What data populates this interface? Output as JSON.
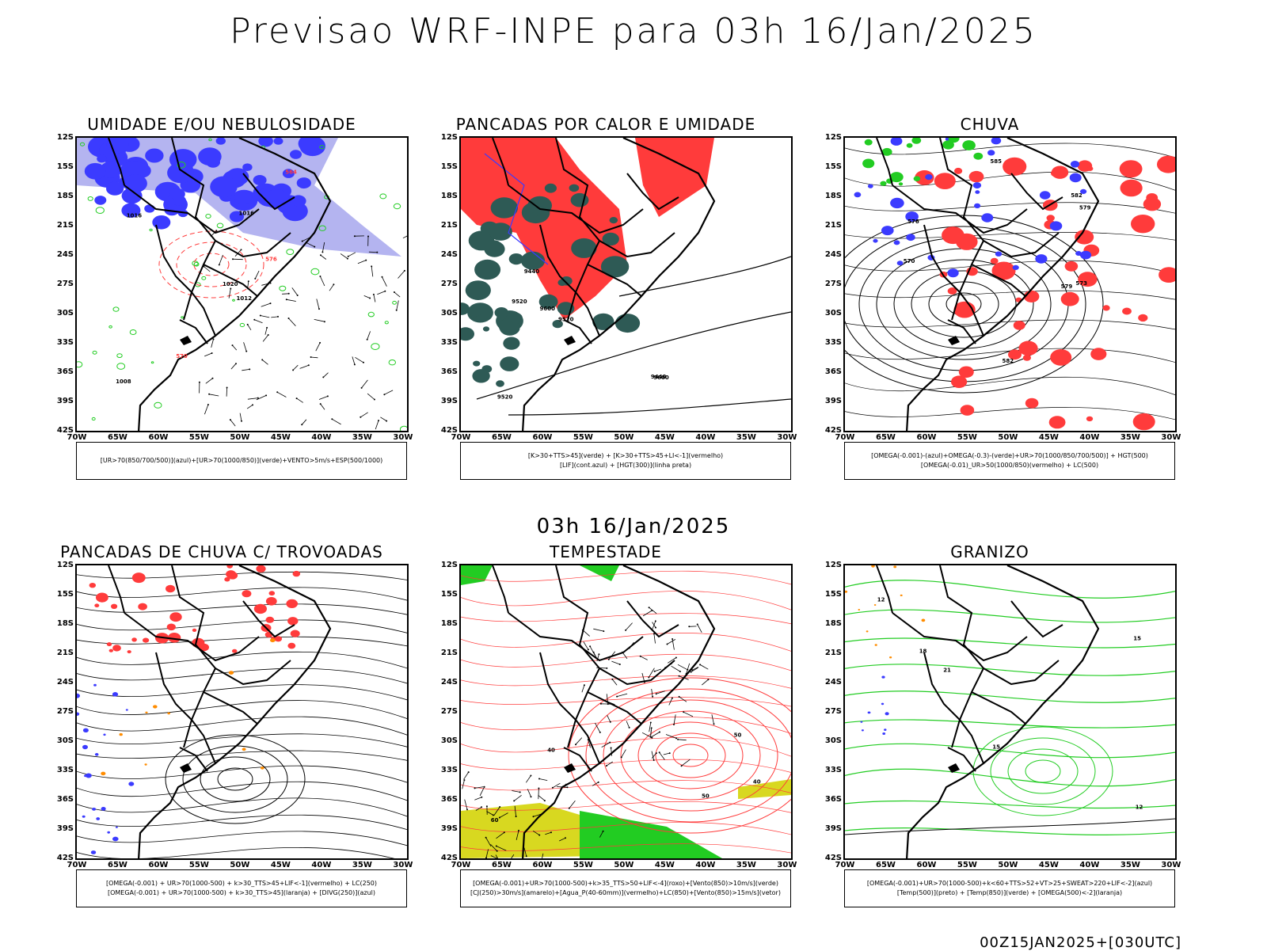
{
  "header": {
    "title": "Previsao WRF-INPE  para 03h 16/Jan/2025"
  },
  "mid_title": "03h 16/Jan/2025",
  "footer": "00Z15JAN2025+[030UTC]",
  "lat_labels": [
    "12S",
    "15S",
    "18S",
    "21S",
    "24S",
    "27S",
    "30S",
    "33S",
    "36S",
    "39S",
    "42S"
  ],
  "lon_labels": [
    "70W",
    "65W",
    "60W",
    "55W",
    "50W",
    "45W",
    "40W",
    "35W",
    "30W"
  ],
  "panels": [
    {
      "title": "UMIDADE E/OU NEBULOSIDADE",
      "legend": [
        "[UR>70(850/700/500)](azul)+[UR>70(1000/850)](verde)+VENTO>5m/s+ESP(500/1000)"
      ],
      "contour_labels": [
        "1012",
        "1016",
        "1020",
        "1008",
        "576",
        "570",
        "564",
        "1016"
      ]
    },
    {
      "title": "PANCADAS POR CALOR E UMIDADE",
      "legend": [
        "[K>30+TTS>45](verde) + [K>30+TTS>45+LI<-1](vermelho)",
        "[LIF](cont.azul) + [HGT(300)](linha preta)"
      ],
      "contour_labels": [
        "9600",
        "9520",
        "9440",
        "9520",
        "9440",
        "9600",
        "9520"
      ]
    },
    {
      "title": "CHUVA",
      "legend": [
        "[OMEGA(-0.001)-(azul)+OMEGA(-0.3)-(verde)+UR>70(1000/850/700/500)] + HGT(500)",
        "[OMEGA(-0.01)_UR>50(1000/850)(vermelho) + LC(500)"
      ],
      "contour_labels": [
        "582",
        "585",
        "579",
        "576",
        "573",
        "570",
        "582",
        "579"
      ]
    },
    {
      "title": "PANCADAS DE CHUVA C/ TROVOADAS",
      "legend": [
        "[OMEGA(-0.001) + UR>70(1000-500) + k>30_TTS>45+LIF<-1](vermelho) + LC(250)",
        "[OMEGA(-0.001) + UR>70(1000-500) + k>30_TTS>45](laranja) + [DIVG(250)](azul)"
      ],
      "contour_labels": []
    },
    {
      "title": "TEMPESTADE",
      "legend": [
        "[OMEGA(-0.001)+UR>70(1000-500)+k>35_TTS>50+LIF<-4](roxo)+[Vento(850)>10m/s](verde)",
        "[CJ(250)>30m/s](amarelo)+[Agua_P(40-60mm)](vermelho)+LC(850)+[Vento(850)>15m/s](vetor)"
      ],
      "contour_labels": [
        "40",
        "50",
        "60",
        "40",
        "50"
      ]
    },
    {
      "title": "GRANIZO",
      "legend": [
        "[OMEGA(-0.001)+UR>70(1000-500)+k<60+TTS>52+VT>25+SWEAT>220+LIF<-2](azul)",
        "[Temp(500)](preto) + [Temp(850)](verde) + [OMEGA(500)<-2](laranja)"
      ],
      "contour_labels": [
        "12",
        "15",
        "18",
        "21",
        "15",
        "12"
      ]
    }
  ],
  "colors": {
    "blue": "#3b3bff",
    "lightblue": "#b4b4f0",
    "green": "#22cc22",
    "red": "#ff3b3b",
    "darkgreen": "#2e5a55",
    "yellow": "#d8d820",
    "orange": "#ff8c00"
  }
}
